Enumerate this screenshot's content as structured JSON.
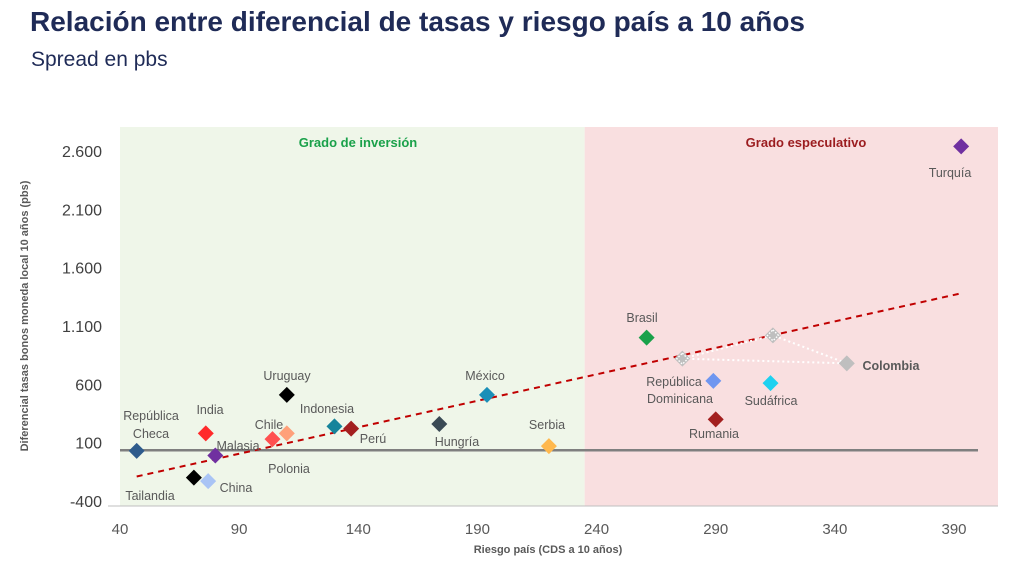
{
  "title": "Relación entre diferencial de tasas y riesgo país a 10 años",
  "subtitle": "Spread en pbs",
  "chart_data": {
    "type": "scatter",
    "xlabel": "Riesgo país (CDS a 10 años)",
    "ylabel": "Diferencial tasas bonos moneda local 10 años (pbs)",
    "xlim": [
      40,
      410
    ],
    "ylim": [
      -400,
      2800
    ],
    "x_ticks": [
      40,
      90,
      140,
      190,
      240,
      290,
      340,
      390
    ],
    "x_tick_labels": [
      "40",
      "90",
      "140",
      "190",
      "240",
      "290",
      "340",
      "390"
    ],
    "y_ticks": [
      -400,
      100,
      600,
      1100,
      1600,
      2100,
      2600
    ],
    "y_tick_labels": [
      "-400",
      "100",
      "600",
      "1.100",
      "1.600",
      "2.100",
      "2.600"
    ],
    "grid": false,
    "zones": [
      {
        "label": "Grado de inversión",
        "x_range": [
          40,
          235
        ],
        "color": "#eff6e9",
        "label_color": "#1aa14a"
      },
      {
        "label": "Grado especulativo",
        "x_range": [
          235,
          410
        ],
        "color": "#f9dfe0",
        "label_color": "#9b1c1f"
      }
    ],
    "horizontal_line": {
      "y": 35,
      "color": "#7f7f7f"
    },
    "trend_line": {
      "points": [
        [
          47,
          -190
        ],
        [
          393,
          1380
        ]
      ],
      "color": "#c00000",
      "style": "dashed"
    },
    "points": [
      {
        "label": "República Checa",
        "x": 47,
        "y": 30,
        "color": "#2e5b8c"
      },
      {
        "label": "India",
        "x": 76,
        "y": 180,
        "color": "#ff2a2a"
      },
      {
        "label": "Tailandia",
        "x": 71,
        "y": -200,
        "color": "#000000"
      },
      {
        "label": "China",
        "x": 77,
        "y": -230,
        "color": "#a9c4f5"
      },
      {
        "label": "Malasia",
        "x": 80,
        "y": -10,
        "color": "#7030a0"
      },
      {
        "label": "Chile",
        "x": 104,
        "y": 130,
        "color": "#ff5050"
      },
      {
        "label": "Uruguay",
        "x": 110,
        "y": 510,
        "color": "#000000"
      },
      {
        "label": "Polonia",
        "x": 110,
        "y": 180,
        "color": "#ffa07a"
      },
      {
        "label": "Indonesia",
        "x": 130,
        "y": 240,
        "color": "#16849b"
      },
      {
        "label": "Perú",
        "x": 137,
        "y": 220,
        "color": "#a31f1f"
      },
      {
        "label": "Hungría",
        "x": 174,
        "y": 260,
        "color": "#3a4a55"
      },
      {
        "label": "México",
        "x": 194,
        "y": 510,
        "color": "#1b8fb8"
      },
      {
        "label": "Serbia",
        "x": 220,
        "y": 70,
        "color": "#ffb84d"
      },
      {
        "label": "Brasil",
        "x": 261,
        "y": 1000,
        "color": "#1aa14a"
      },
      {
        "label": "República Dominicana",
        "x": 289,
        "y": 630,
        "color": "#6f96f0"
      },
      {
        "label": "Sudáfrica",
        "x": 313,
        "y": 610,
        "color": "#1ed1f0"
      },
      {
        "label": "Rumania",
        "x": 290,
        "y": 300,
        "color": "#a31f1f"
      },
      {
        "label": "Turquía",
        "x": 393,
        "y": 2640,
        "color": "#7030a0"
      },
      {
        "label": "Colombia",
        "x": 345,
        "y": 780,
        "color": "#bfbfbf"
      }
    ],
    "colombia_history": {
      "label": "Colombia",
      "points": [
        {
          "x": 276,
          "y": 820
        },
        {
          "x": 314,
          "y": 1020
        }
      ],
      "color": "#bfbfbf"
    }
  }
}
